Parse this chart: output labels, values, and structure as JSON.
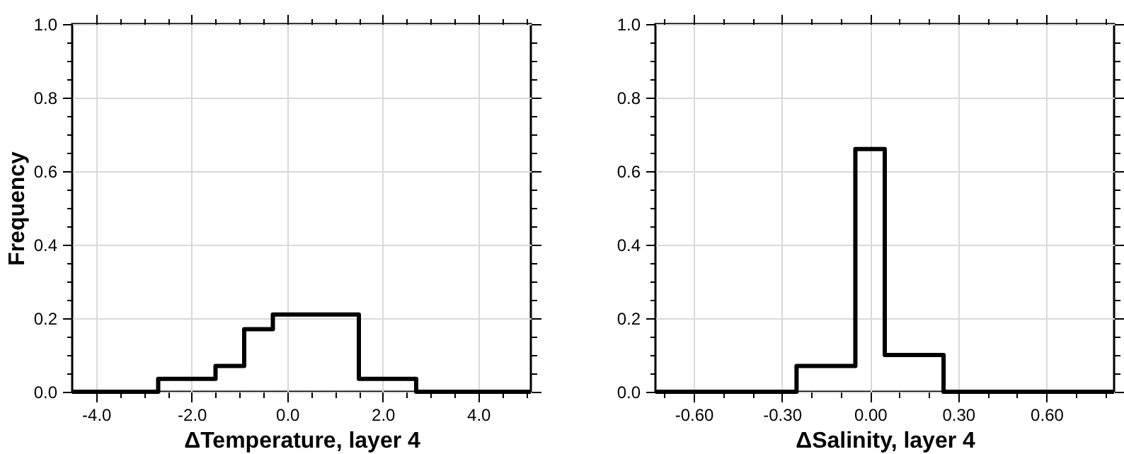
{
  "chart_data": [
    {
      "type": "histogram",
      "xlabel": "ΔTemperature, layer 4",
      "ylabel": "Frequency",
      "bins": [
        -4.5,
        -2.7,
        -1.5,
        -0.9,
        -0.3,
        1.5,
        2.7,
        5.1
      ],
      "values": [
        0,
        0.035,
        0.07,
        0.17,
        0.21,
        0.035,
        0
      ],
      "color": "#000000",
      "xlim": [
        -4.5,
        5.1
      ],
      "ylim": [
        0,
        1
      ],
      "xticks": [
        {
          "value": -4,
          "label": "-4.0"
        },
        {
          "value": -3.5,
          "label": null
        },
        {
          "value": -3,
          "label": null
        },
        {
          "value": -2.5,
          "label": null
        },
        {
          "value": -2,
          "label": "-2.0"
        },
        {
          "value": -1.5,
          "label": null
        },
        {
          "value": -1,
          "label": null
        },
        {
          "value": -0.5,
          "label": null
        },
        {
          "value": 0,
          "label": "0.0"
        },
        {
          "value": 0.5,
          "label": null
        },
        {
          "value": 1,
          "label": null
        },
        {
          "value": 1.5,
          "label": null
        },
        {
          "value": 2,
          "label": "2.0"
        },
        {
          "value": 2.5,
          "label": null
        },
        {
          "value": 3,
          "label": null
        },
        {
          "value": 3.5,
          "label": null
        },
        {
          "value": 4,
          "label": "4.0"
        },
        {
          "value": 4.5,
          "label": null
        },
        {
          "value": 5,
          "label": null
        }
      ],
      "yticks": [
        {
          "value": 0,
          "label": "0.0"
        },
        {
          "value": 0.05,
          "label": null
        },
        {
          "value": 0.1,
          "label": null
        },
        {
          "value": 0.15,
          "label": null
        },
        {
          "value": 0.2,
          "label": "0.2"
        },
        {
          "value": 0.25,
          "label": null
        },
        {
          "value": 0.3,
          "label": null
        },
        {
          "value": 0.35,
          "label": null
        },
        {
          "value": 0.4,
          "label": "0.4"
        },
        {
          "value": 0.45,
          "label": null
        },
        {
          "value": 0.5,
          "label": null
        },
        {
          "value": 0.55,
          "label": null
        },
        {
          "value": 0.6,
          "label": "0.6"
        },
        {
          "value": 0.65,
          "label": null
        },
        {
          "value": 0.7,
          "label": null
        },
        {
          "value": 0.75,
          "label": null
        },
        {
          "value": 0.8,
          "label": "0.8"
        },
        {
          "value": 0.85,
          "label": null
        },
        {
          "value": 0.9,
          "label": null
        },
        {
          "value": 0.95,
          "label": null
        },
        {
          "value": 1,
          "label": "1.0"
        }
      ],
      "grid": true
    },
    {
      "type": "histogram",
      "xlabel": "ΔSalinity, layer 4",
      "bins": [
        -0.73,
        -0.25,
        -0.05,
        0.05,
        0.25,
        0.83
      ],
      "values": [
        0,
        0.07,
        0.66,
        0.1,
        0
      ],
      "color": "#000000",
      "xlim": [
        -0.73,
        0.83
      ],
      "ylim": [
        0,
        1
      ],
      "xticks": [
        {
          "value": -0.7,
          "label": null
        },
        {
          "value": -0.6,
          "label": "-0.60"
        },
        {
          "value": -0.5,
          "label": null
        },
        {
          "value": -0.4,
          "label": null
        },
        {
          "value": -0.3,
          "label": "-0.30"
        },
        {
          "value": -0.2,
          "label": null
        },
        {
          "value": -0.1,
          "label": null
        },
        {
          "value": 0,
          "label": "0.00"
        },
        {
          "value": 0.1,
          "label": null
        },
        {
          "value": 0.2,
          "label": null
        },
        {
          "value": 0.3,
          "label": "0.30"
        },
        {
          "value": 0.4,
          "label": null
        },
        {
          "value": 0.5,
          "label": null
        },
        {
          "value": 0.6,
          "label": "0.60"
        },
        {
          "value": 0.7,
          "label": null
        },
        {
          "value": 0.8,
          "label": null
        }
      ],
      "yticks": [
        {
          "value": 0,
          "label": "0.0"
        },
        {
          "value": 0.05,
          "label": null
        },
        {
          "value": 0.1,
          "label": null
        },
        {
          "value": 0.15,
          "label": null
        },
        {
          "value": 0.2,
          "label": "0.2"
        },
        {
          "value": 0.25,
          "label": null
        },
        {
          "value": 0.3,
          "label": null
        },
        {
          "value": 0.35,
          "label": null
        },
        {
          "value": 0.4,
          "label": "0.4"
        },
        {
          "value": 0.45,
          "label": null
        },
        {
          "value": 0.5,
          "label": null
        },
        {
          "value": 0.55,
          "label": null
        },
        {
          "value": 0.6,
          "label": "0.6"
        },
        {
          "value": 0.65,
          "label": null
        },
        {
          "value": 0.7,
          "label": null
        },
        {
          "value": 0.75,
          "label": null
        },
        {
          "value": 0.8,
          "label": "0.8"
        },
        {
          "value": 0.85,
          "label": null
        },
        {
          "value": 0.9,
          "label": null
        },
        {
          "value": 0.95,
          "label": null
        },
        {
          "value": 1,
          "label": "1.0"
        }
      ],
      "grid": true
    }
  ]
}
